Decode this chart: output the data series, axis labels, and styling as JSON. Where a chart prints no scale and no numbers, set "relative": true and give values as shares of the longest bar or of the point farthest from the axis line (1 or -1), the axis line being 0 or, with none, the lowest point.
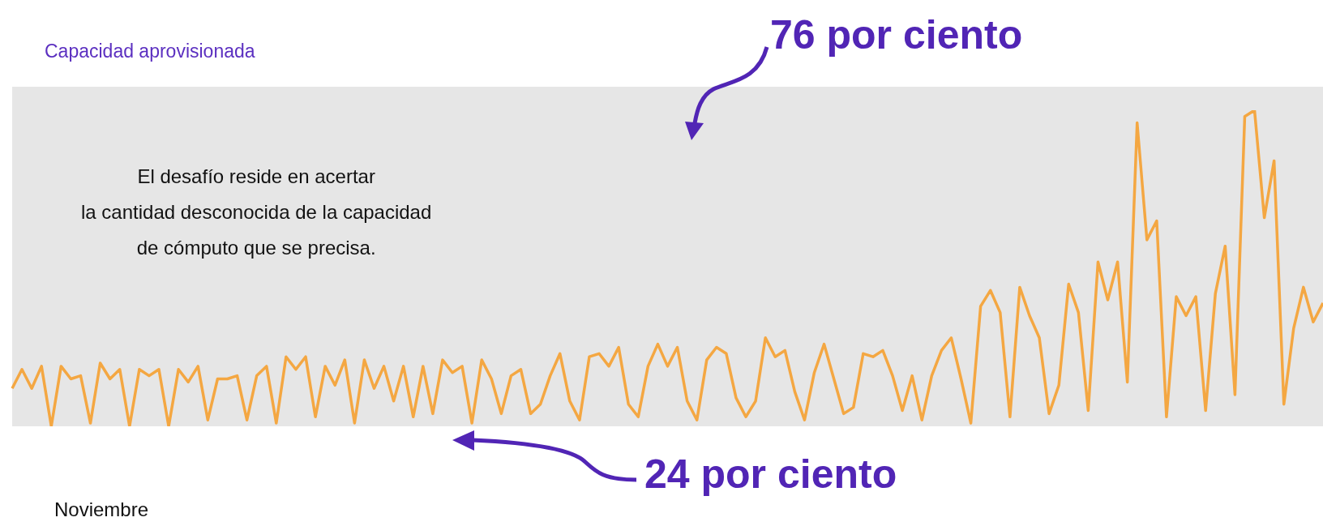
{
  "chart_data": {
    "type": "line",
    "relative": true,
    "xlabel": "Noviembre",
    "annotations": [
      "Capacidad aprovisionada",
      "76 por ciento",
      "El desafío reside en acertar\nla cantidad desconocida de la capacidad\nde cómputo que se precisa.",
      "24 por ciento"
    ],
    "categories": [
      null,
      null,
      null,
      null,
      null,
      null,
      null,
      null,
      null,
      null,
      null,
      null,
      null,
      null,
      null,
      null,
      null,
      null,
      null,
      null,
      null,
      null,
      null,
      null,
      null,
      null,
      null,
      null,
      null,
      null,
      null,
      null,
      null,
      null,
      null,
      null,
      null,
      null,
      null,
      null,
      null,
      null,
      null,
      null,
      null,
      null,
      null,
      null,
      null,
      null,
      null,
      null,
      null,
      null,
      null,
      null,
      null,
      null,
      null,
      null,
      null,
      null,
      null,
      null,
      null,
      null,
      null,
      null,
      null,
      null,
      null,
      null,
      null,
      null,
      null,
      null,
      null,
      null,
      null,
      null,
      null,
      null,
      null,
      null,
      null,
      null,
      null,
      null,
      null,
      null,
      null,
      null,
      null,
      null,
      null,
      null,
      null,
      null,
      null,
      null,
      null,
      null,
      null,
      null,
      null,
      null,
      null,
      null,
      null,
      null,
      null,
      null,
      null,
      null,
      null,
      null,
      null,
      null,
      null,
      null,
      null,
      null,
      null,
      null,
      null,
      null,
      null,
      null,
      null,
      null,
      null,
      null,
      null,
      null,
      null
    ],
    "series": [
      {
        "color": "#f4a742",
        "values": [
          0.12,
          0.18,
          0.12,
          0.19,
          0.0,
          0.19,
          0.15,
          0.16,
          0.01,
          0.2,
          0.15,
          0.18,
          0.0,
          0.18,
          0.16,
          0.18,
          0.0,
          0.18,
          0.14,
          0.19,
          0.02,
          0.15,
          0.15,
          0.16,
          0.02,
          0.16,
          0.19,
          0.01,
          0.22,
          0.18,
          0.22,
          0.03,
          0.19,
          0.13,
          0.21,
          0.01,
          0.21,
          0.12,
          0.19,
          0.08,
          0.19,
          0.03,
          0.19,
          0.04,
          0.21,
          0.17,
          0.19,
          0.01,
          0.21,
          0.15,
          0.04,
          0.16,
          0.18,
          0.04,
          0.07,
          0.16,
          0.23,
          0.08,
          0.02,
          0.22,
          0.23,
          0.19,
          0.25,
          0.07,
          0.03,
          0.19,
          0.26,
          0.19,
          0.25,
          0.08,
          0.02,
          0.21,
          0.25,
          0.23,
          0.09,
          0.03,
          0.08,
          0.28,
          0.22,
          0.24,
          0.11,
          0.02,
          0.17,
          0.26,
          0.15,
          0.04,
          0.06,
          0.23,
          0.22,
          0.24,
          0.16,
          0.05,
          0.16,
          0.02,
          0.16,
          0.24,
          0.28,
          0.15,
          0.01,
          0.38,
          0.43,
          0.36,
          0.03,
          0.44,
          0.35,
          0.28,
          0.04,
          0.13,
          0.45,
          0.36,
          0.05,
          0.52,
          0.4,
          0.52,
          0.14,
          0.96,
          0.59,
          0.65,
          0.03,
          0.41,
          0.35,
          0.41,
          0.05,
          0.42,
          0.57,
          0.1,
          0.98,
          1.0,
          0.66,
          0.84,
          0.07,
          0.31,
          0.44,
          0.33,
          0.39
        ]
      }
    ]
  }
}
